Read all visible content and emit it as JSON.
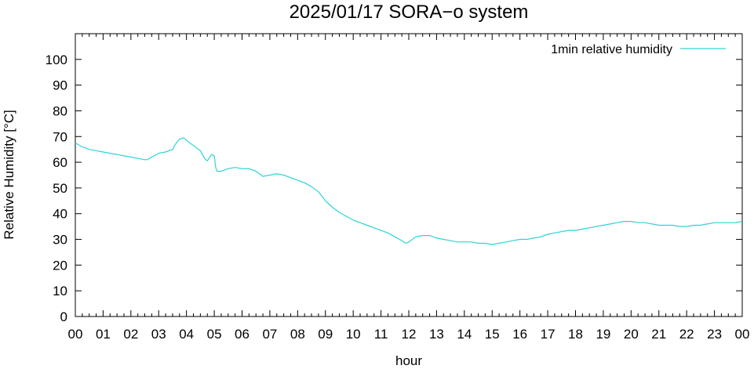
{
  "chart_data": {
    "type": "line",
    "title": "2025/01/17 SORA−o system",
    "xlabel": "hour",
    "ylabel": "Relative Humidity [°C]",
    "xlim": [
      0,
      24
    ],
    "ylim": [
      0,
      110
    ],
    "x_ticks": [
      "00",
      "01",
      "02",
      "03",
      "04",
      "05",
      "06",
      "07",
      "08",
      "09",
      "10",
      "11",
      "12",
      "13",
      "14",
      "15",
      "16",
      "17",
      "18",
      "19",
      "20",
      "21",
      "22",
      "23",
      "00"
    ],
    "y_ticks": [
      0,
      10,
      20,
      30,
      40,
      50,
      60,
      70,
      80,
      90,
      100
    ],
    "legend": {
      "position": "top-right"
    },
    "grid": false,
    "series": [
      {
        "name": "1min relative humidity",
        "color": "#2ed3d3",
        "x": [
          0.0,
          0.25,
          0.5,
          0.75,
          1.0,
          1.25,
          1.5,
          1.75,
          2.0,
          2.25,
          2.5,
          2.6,
          2.75,
          3.0,
          3.25,
          3.5,
          3.6,
          3.75,
          3.9,
          4.0,
          4.25,
          4.5,
          4.65,
          4.75,
          4.9,
          5.0,
          5.05,
          5.1,
          5.25,
          5.5,
          5.75,
          6.0,
          6.25,
          6.5,
          6.75,
          7.0,
          7.25,
          7.5,
          7.75,
          8.0,
          8.25,
          8.5,
          8.75,
          9.0,
          9.25,
          9.5,
          9.75,
          10.0,
          10.25,
          10.5,
          10.75,
          11.0,
          11.25,
          11.5,
          11.75,
          11.9,
          12.0,
          12.25,
          12.5,
          12.75,
          13.0,
          13.25,
          13.5,
          13.75,
          14.0,
          14.25,
          14.5,
          14.75,
          15.0,
          15.25,
          15.5,
          15.75,
          16.0,
          16.25,
          16.5,
          16.75,
          17.0,
          17.25,
          17.5,
          17.75,
          18.0,
          18.25,
          18.5,
          18.75,
          19.0,
          19.25,
          19.5,
          19.75,
          20.0,
          20.25,
          20.5,
          20.75,
          21.0,
          21.25,
          21.5,
          21.75,
          22.0,
          22.25,
          22.5,
          22.75,
          23.0,
          23.25,
          23.5,
          23.75,
          24.0
        ],
        "values": [
          67.5,
          66.0,
          65.0,
          64.5,
          64.0,
          63.5,
          63.0,
          62.5,
          62.0,
          61.5,
          61.0,
          61.0,
          62.0,
          63.5,
          64.0,
          65.0,
          67.0,
          69.0,
          69.5,
          68.5,
          66.5,
          64.5,
          61.5,
          60.5,
          63.0,
          62.5,
          58.0,
          56.5,
          56.5,
          57.5,
          58.0,
          57.5,
          57.5,
          56.5,
          54.5,
          55.0,
          55.5,
          55.0,
          54.0,
          53.0,
          52.0,
          50.5,
          48.5,
          45.0,
          42.5,
          40.5,
          39.0,
          37.5,
          36.5,
          35.5,
          34.5,
          33.5,
          32.5,
          31.0,
          29.5,
          28.5,
          29.0,
          31.0,
          31.5,
          31.5,
          30.5,
          30.0,
          29.5,
          29.0,
          29.0,
          29.0,
          28.5,
          28.5,
          28.0,
          28.5,
          29.0,
          29.5,
          30.0,
          30.0,
          30.5,
          31.0,
          32.0,
          32.5,
          33.0,
          33.5,
          33.5,
          34.0,
          34.5,
          35.0,
          35.5,
          36.0,
          36.5,
          37.0,
          37.0,
          36.5,
          36.5,
          36.0,
          35.5,
          35.5,
          35.5,
          35.0,
          35.0,
          35.5,
          35.5,
          36.0,
          36.5,
          36.5,
          36.5,
          36.5,
          37.0
        ]
      }
    ]
  }
}
